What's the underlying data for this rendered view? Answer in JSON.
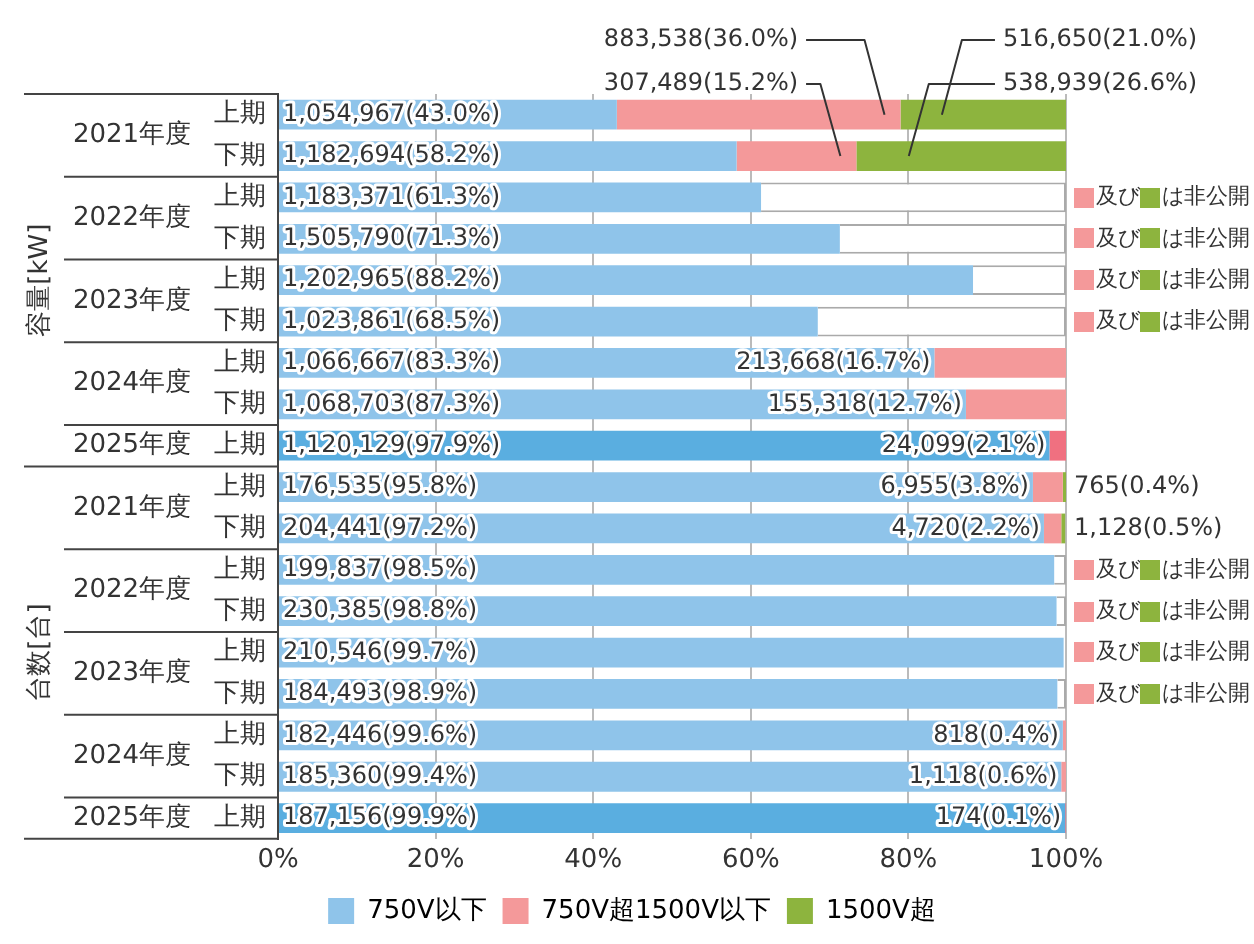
{
  "chart_data": {
    "type": "bar",
    "orientation": "horizontal",
    "stacked": true,
    "categories": [
      "上期",
      "下期",
      "上期",
      "下期",
      "上期",
      "下期",
      "上期",
      "下期",
      "上期",
      "上期",
      "下期",
      "上期",
      "下期",
      "上期",
      "下期",
      "上期",
      "下期",
      "上期"
    ],
    "series": [
      {
        "name": "750V以下",
        "color": "#8fc4ea",
        "colors": [
          "#8fc4ea",
          "#8fc4ea",
          "#8fc4ea",
          "#8fc4ea",
          "#8fc4ea",
          "#8fc4ea",
          "#8fc4ea",
          "#8fc4ea",
          "#5aaee0",
          "#8fc4ea",
          "#8fc4ea",
          "#8fc4ea",
          "#8fc4ea",
          "#8fc4ea",
          "#8fc4ea",
          "#8fc4ea",
          "#8fc4ea",
          "#5aaee0"
        ],
        "values": [
          43.0,
          58.2,
          61.3,
          71.3,
          88.2,
          68.5,
          83.3,
          87.3,
          97.9,
          95.8,
          97.2,
          98.5,
          98.8,
          99.7,
          98.9,
          99.6,
          99.4,
          99.9
        ],
        "value_labels": [
          "1,054,967(43.0%)",
          "1,182,694(58.2%)",
          "1,183,371(61.3%)",
          "1,505,790(71.3%)",
          "1,202,965(88.2%)",
          "1,023,861(68.5%)",
          "1,066,667(83.3%)",
          "1,068,703(87.3%)",
          "1,120,129(97.9%)",
          "176,535(95.8%)",
          "204,441(97.2%)",
          "199,837(98.5%)",
          "230,385(98.8%)",
          "210,546(99.7%)",
          "184,493(98.9%)",
          "182,446(99.6%)",
          "185,360(99.4%)",
          "187,156(99.9%)"
        ]
      },
      {
        "name": "750V超1500V以下",
        "color": "#f4999a",
        "colors": [
          "#f4999a",
          "#f4999a",
          "#f4999a",
          "#f4999a",
          "#f4999a",
          "#f4999a",
          "#f4999a",
          "#f4999a",
          "#f07080",
          "#f4999a",
          "#f4999a",
          "#f4999a",
          "#f4999a",
          "#f4999a",
          "#f4999a",
          "#f4999a",
          "#f4999a",
          "#f07080"
        ],
        "values": [
          36.0,
          15.2,
          null,
          null,
          null,
          null,
          16.7,
          12.7,
          2.1,
          3.8,
          2.2,
          null,
          null,
          null,
          null,
          0.4,
          0.6,
          0.1
        ],
        "value_labels": [
          "883,538(36.0%)",
          "307,489(15.2%)",
          null,
          null,
          null,
          null,
          "213,668(16.7%)",
          "155,318(12.7%)",
          "24,099(2.1%)",
          "6,955(3.8%)",
          "4,720(2.2%)",
          null,
          null,
          null,
          null,
          "818(0.4%)",
          "1,118(0.6%)",
          "174(0.1%)"
        ]
      },
      {
        "name": "1500V超",
        "color": "#8db43e",
        "values": [
          21.0,
          26.6,
          null,
          null,
          null,
          null,
          null,
          null,
          null,
          0.4,
          0.5,
          null,
          null,
          null,
          null,
          null,
          null,
          null
        ],
        "value_labels": [
          "516,650(21.0%)",
          "538,939(26.6%)",
          null,
          null,
          null,
          null,
          null,
          null,
          null,
          "765(0.4%)",
          "1,128(0.5%)",
          null,
          null,
          null,
          null,
          null,
          null,
          null
        ]
      },
      {
        "color": "#ffffff",
        "values": [
          null,
          null,
          38.7,
          28.7,
          11.8,
          31.5,
          null,
          null,
          null,
          null,
          null,
          1.5,
          1.2,
          null,
          1.1,
          null,
          null,
          null
        ]
      }
    ],
    "xlim": [
      0,
      100
    ],
    "xticks": [
      {
        "value": 0,
        "label": "0%"
      },
      {
        "value": 20,
        "label": "20%"
      },
      {
        "value": 40,
        "label": "40%"
      },
      {
        "value": 60,
        "label": "60%"
      },
      {
        "value": 80,
        "label": "80%"
      },
      {
        "value": 100,
        "label": "100%"
      }
    ],
    "grid": "x",
    "legend": "bottom",
    "annotations": [
      "容量[kW]",
      "台数[台]",
      "2021年度",
      "2022年度",
      "2023年度",
      "2024年度",
      "2025年度",
      "2021年度",
      "2022年度",
      "2023年度",
      "2024年度",
      "2025年度",
      "及び",
      "は非公開"
    ]
  }
}
